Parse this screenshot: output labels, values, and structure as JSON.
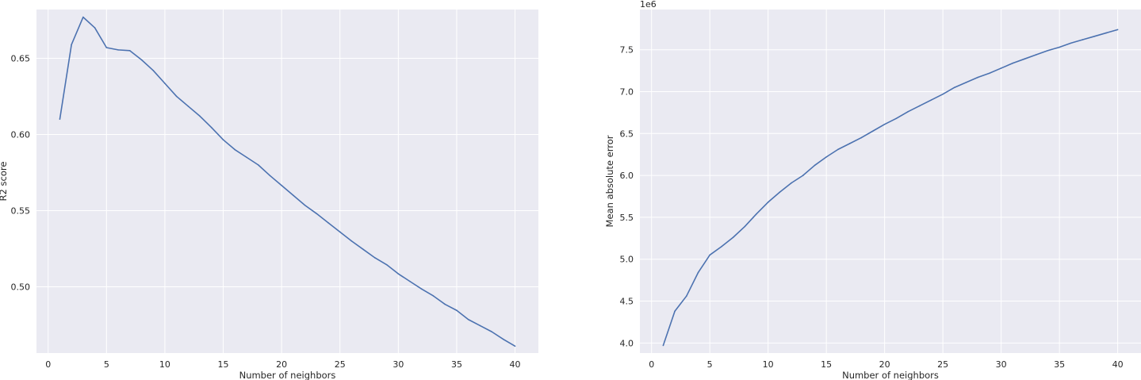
{
  "chart_data": [
    {
      "type": "line",
      "xlabel": "Number of neighbors",
      "ylabel": "R2 score",
      "xlim": [
        -1,
        42
      ],
      "ylim": [
        0.4565,
        0.682
      ],
      "xticks": [
        0,
        5,
        10,
        15,
        20,
        25,
        30,
        35,
        40
      ],
      "xtick_labels": [
        "0",
        "5",
        "10",
        "15",
        "20",
        "25",
        "30",
        "35",
        "40"
      ],
      "yticks": [
        0.5,
        0.55,
        0.6,
        0.65
      ],
      "ytick_labels": [
        "0.50",
        "0.55",
        "0.60",
        "0.65"
      ],
      "offset_text": "",
      "grid": true,
      "background": "#eaeaf2",
      "line_color": "#4c72b0",
      "x": [
        1,
        2,
        3,
        4,
        5,
        6,
        7,
        8,
        9,
        10,
        11,
        12,
        13,
        14,
        15,
        16,
        17,
        18,
        19,
        20,
        21,
        22,
        23,
        24,
        25,
        26,
        27,
        28,
        29,
        30,
        31,
        32,
        33,
        34,
        35,
        36,
        37,
        38,
        39,
        40
      ],
      "y": [
        0.61,
        0.659,
        0.677,
        0.67,
        0.657,
        0.6555,
        0.655,
        0.649,
        0.642,
        0.6335,
        0.625,
        0.6185,
        0.612,
        0.6045,
        0.5965,
        0.59,
        0.585,
        0.58,
        0.573,
        0.5665,
        0.56,
        0.5535,
        0.548,
        0.542,
        0.536,
        0.53,
        0.5245,
        0.519,
        0.5145,
        0.5085,
        0.5035,
        0.4985,
        0.494,
        0.4885,
        0.4845,
        0.4785,
        0.4745,
        0.4705,
        0.4655,
        0.461
      ]
    },
    {
      "type": "line",
      "xlabel": "Number of neighbors",
      "ylabel": "Mean absolute error",
      "xlim": [
        -1,
        42
      ],
      "ylim": [
        3.88,
        7.98
      ],
      "xticks": [
        0,
        5,
        10,
        15,
        20,
        25,
        30,
        35,
        40
      ],
      "xtick_labels": [
        "0",
        "5",
        "10",
        "15",
        "20",
        "25",
        "30",
        "35",
        "40"
      ],
      "yticks": [
        4.0,
        4.5,
        5.0,
        5.5,
        6.0,
        6.5,
        7.0,
        7.5
      ],
      "ytick_labels": [
        "4.0",
        "4.5",
        "5.0",
        "5.5",
        "6.0",
        "6.5",
        "7.0",
        "7.5"
      ],
      "offset_text": "1e6",
      "grid": true,
      "background": "#eaeaf2",
      "line_color": "#4c72b0",
      "x": [
        1,
        2,
        3,
        4,
        5,
        6,
        7,
        8,
        9,
        10,
        11,
        12,
        13,
        14,
        15,
        16,
        17,
        18,
        19,
        20,
        21,
        22,
        23,
        24,
        25,
        26,
        27,
        28,
        29,
        30,
        31,
        32,
        33,
        34,
        35,
        36,
        37,
        38,
        39,
        40
      ],
      "y": [
        3.97,
        4.38,
        4.56,
        4.84,
        5.05,
        5.15,
        5.26,
        5.39,
        5.54,
        5.68,
        5.8,
        5.91,
        6.0,
        6.12,
        6.22,
        6.31,
        6.38,
        6.45,
        6.53,
        6.61,
        6.68,
        6.76,
        6.83,
        6.9,
        6.97,
        7.05,
        7.11,
        7.17,
        7.22,
        7.28,
        7.34,
        7.39,
        7.44,
        7.49,
        7.53,
        7.58,
        7.62,
        7.66,
        7.7,
        7.74
      ]
    }
  ]
}
